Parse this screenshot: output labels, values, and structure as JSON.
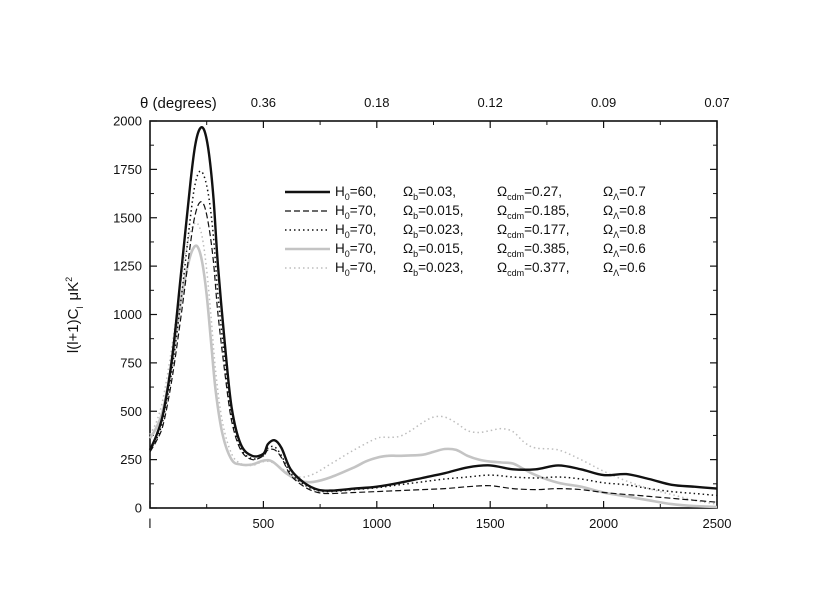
{
  "chart_data": {
    "type": "line",
    "title": "",
    "xlabel": "l",
    "ylabel": {
      "main": "l(l+1)C",
      "sub": "l",
      "unit": "μK",
      "sup": "2"
    },
    "xlim": [
      0,
      2500
    ],
    "ylim": [
      0,
      2000
    ],
    "x_ticks": [
      0,
      500,
      1000,
      1500,
      2000,
      2500
    ],
    "x_tick_labels": [
      "l",
      "500",
      "1000",
      "1500",
      "2000",
      "2500"
    ],
    "y_ticks": [
      0,
      250,
      500,
      750,
      1000,
      1250,
      1500,
      1750,
      2000
    ],
    "y_tick_labels": [
      "0",
      "250",
      "500",
      "750",
      "1000",
      "1250",
      "1500",
      "1750",
      "2000"
    ],
    "top_axis": {
      "label": "θ (degrees)",
      "ticks": [
        {
          "l": 500,
          "label": "0.36"
        },
        {
          "l": 1000,
          "label": "0.18"
        },
        {
          "l": 1500,
          "label": "0.12"
        },
        {
          "l": 2000,
          "label": "0.09"
        },
        {
          "l": 2500,
          "label": "0.07"
        }
      ]
    },
    "grid": false,
    "legend_position": "top-right",
    "series": [
      {
        "legend": {
          "h0": "=60,",
          "ob": "=0.03,",
          "ocdm": "=0.27,",
          "ol": "=0.7"
        },
        "style": "solid-black",
        "x": [
          0,
          30,
          60,
          100,
          140,
          180,
          200,
          220,
          240,
          260,
          280,
          300,
          330,
          360,
          400,
          450,
          500,
          520,
          550,
          580,
          620,
          680,
          740,
          800,
          900,
          1000,
          1100,
          1200,
          1300,
          1400,
          1500,
          1600,
          1700,
          1800,
          1900,
          2000,
          2100,
          2200,
          2300,
          2400,
          2500
        ],
        "y": [
          300,
          380,
          500,
          800,
          1250,
          1700,
          1880,
          1960,
          1950,
          1830,
          1600,
          1250,
          850,
          520,
          330,
          270,
          280,
          330,
          350,
          310,
          200,
          130,
          95,
          90,
          100,
          110,
          130,
          155,
          180,
          210,
          220,
          200,
          200,
          220,
          200,
          170,
          175,
          150,
          120,
          110,
          100
        ]
      },
      {
        "legend": {
          "h0": "=70,",
          "ob": "=0.015,",
          "ocdm": "=0.185,",
          "ol": "=0.8"
        },
        "style": "dashed-black",
        "x": [
          0,
          30,
          60,
          100,
          140,
          180,
          200,
          220,
          240,
          260,
          280,
          300,
          330,
          360,
          400,
          450,
          500,
          520,
          550,
          580,
          620,
          680,
          740,
          800,
          900,
          1000,
          1100,
          1200,
          1300,
          1400,
          1500,
          1600,
          1700,
          1800,
          1900,
          2000,
          2100,
          2200,
          2300,
          2400,
          2500
        ],
        "y": [
          290,
          350,
          440,
          690,
          1020,
          1380,
          1520,
          1580,
          1560,
          1450,
          1270,
          1000,
          700,
          450,
          300,
          250,
          270,
          300,
          300,
          260,
          170,
          110,
          80,
          75,
          80,
          85,
          90,
          95,
          100,
          110,
          115,
          100,
          95,
          100,
          95,
          80,
          70,
          60,
          50,
          40,
          30
        ]
      },
      {
        "legend": {
          "h0": "=70,",
          "ob": "=0.023,",
          "ocdm": "=0.177,",
          "ol": "=0.8"
        },
        "style": "dotted-black",
        "x": [
          0,
          30,
          60,
          100,
          140,
          180,
          200,
          220,
          240,
          260,
          280,
          300,
          330,
          360,
          400,
          450,
          500,
          520,
          550,
          580,
          620,
          680,
          740,
          800,
          900,
          1000,
          1100,
          1200,
          1300,
          1400,
          1500,
          1600,
          1700,
          1800,
          1900,
          2000,
          2100,
          2200,
          2300,
          2400,
          2500
        ],
        "y": [
          300,
          360,
          470,
          740,
          1110,
          1520,
          1680,
          1740,
          1710,
          1600,
          1400,
          1100,
          760,
          480,
          310,
          255,
          270,
          310,
          315,
          270,
          180,
          120,
          90,
          85,
          95,
          105,
          120,
          135,
          150,
          160,
          170,
          160,
          155,
          160,
          150,
          130,
          120,
          100,
          85,
          75,
          65
        ]
      },
      {
        "legend": {
          "h0": "=70,",
          "ob": "=0.015,",
          "ocdm": "=0.385,",
          "ol": "=0.6"
        },
        "style": "solid-gray",
        "x": [
          0,
          30,
          60,
          100,
          140,
          170,
          190,
          210,
          230,
          250,
          270,
          290,
          320,
          360,
          400,
          450,
          500,
          540,
          600,
          660,
          720,
          800,
          900,
          950,
          1000,
          1050,
          1100,
          1200,
          1250,
          1300,
          1350,
          1400,
          1450,
          1500,
          1550,
          1600,
          1650,
          1700,
          1800,
          1900,
          2000,
          2100,
          2200,
          2300,
          2400,
          2500
        ],
        "y": [
          360,
          420,
          520,
          780,
          1100,
          1270,
          1340,
          1350,
          1270,
          1100,
          850,
          600,
          380,
          250,
          225,
          225,
          245,
          240,
          180,
          140,
          135,
          160,
          210,
          240,
          260,
          270,
          270,
          275,
          290,
          305,
          300,
          270,
          250,
          240,
          235,
          230,
          200,
          170,
          130,
          110,
          80,
          60,
          40,
          20,
          10,
          5
        ]
      },
      {
        "legend": {
          "h0": "=70,",
          "ob": "=0.023,",
          "ocdm": "=0.377,",
          "ol": "=0.6"
        },
        "style": "dotted-gray",
        "x": [
          0,
          30,
          60,
          100,
          140,
          170,
          190,
          210,
          230,
          250,
          270,
          290,
          320,
          360,
          400,
          450,
          500,
          540,
          600,
          660,
          720,
          800,
          900,
          1000,
          1050,
          1100,
          1150,
          1200,
          1250,
          1300,
          1350,
          1400,
          1450,
          1500,
          1550,
          1600,
          1650,
          1700,
          1800,
          1900,
          2000,
          2100,
          2200,
          2300,
          2400,
          2500
        ],
        "y": [
          380,
          450,
          580,
          860,
          1200,
          1390,
          1460,
          1470,
          1400,
          1230,
          980,
          700,
          440,
          280,
          230,
          220,
          240,
          235,
          190,
          160,
          175,
          230,
          300,
          360,
          365,
          370,
          400,
          440,
          470,
          470,
          440,
          400,
          390,
          400,
          410,
          395,
          340,
          310,
          300,
          250,
          190,
          140,
          100,
          70,
          40,
          20
        ]
      }
    ]
  }
}
